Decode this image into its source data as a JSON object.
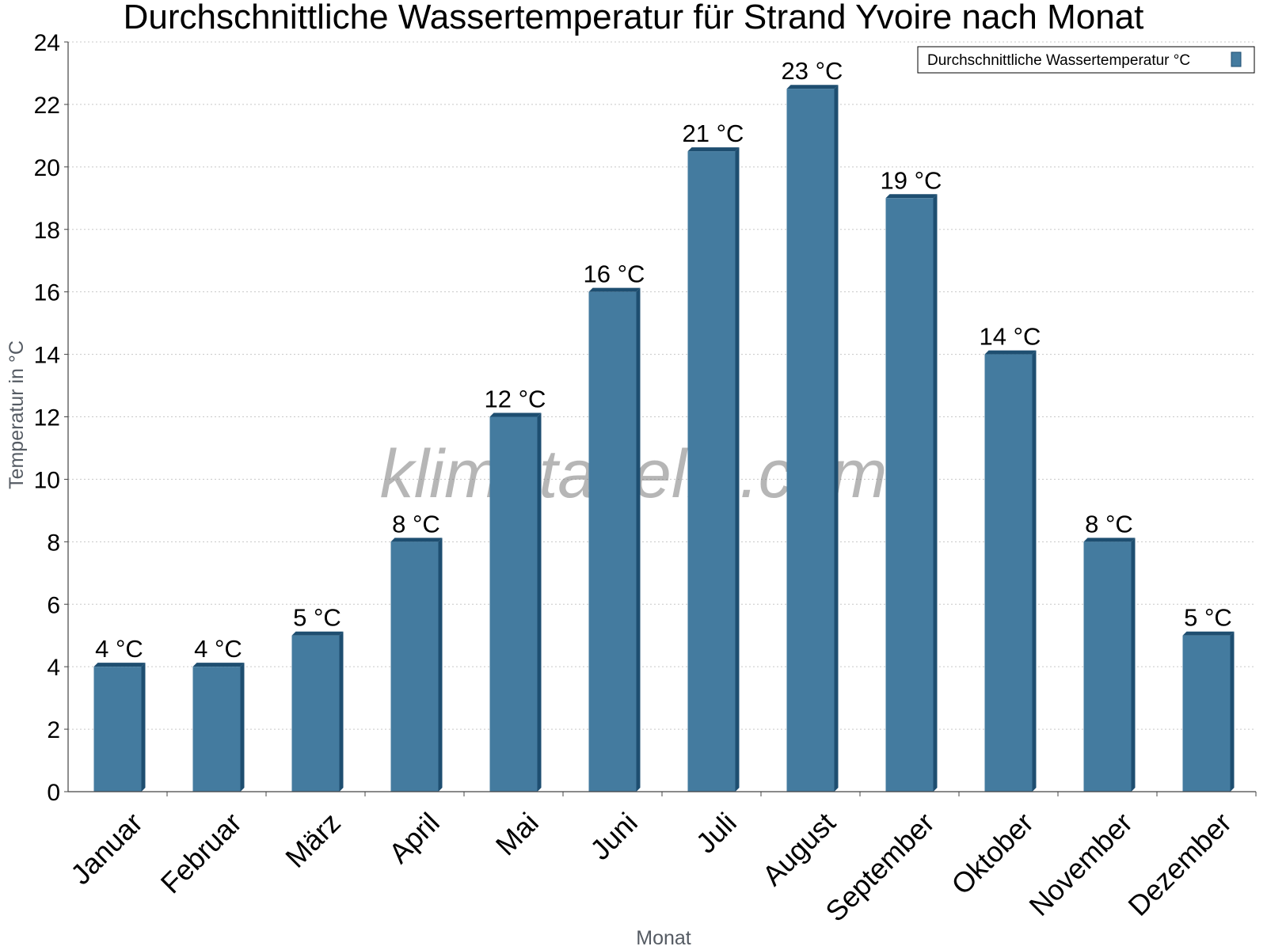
{
  "chart_data": {
    "type": "bar",
    "title": "Durchschnittliche Wassertemperatur für Strand Yvoire nach Monat",
    "xlabel": "Monat",
    "ylabel": "Temperatur in °C",
    "categories": [
      "Januar",
      "Februar",
      "März",
      "April",
      "Mai",
      "Juni",
      "Juli",
      "August",
      "September",
      "Oktober",
      "November",
      "Dezember"
    ],
    "series": [
      {
        "name": "Durchschnittliche Wassertemperatur °C",
        "values": [
          4,
          4,
          5,
          8,
          12,
          16,
          20.5,
          22.5,
          19,
          14,
          8,
          5
        ],
        "labels": [
          "4 °C",
          "4 °C",
          "5 °C",
          "8 °C",
          "12 °C",
          "16 °C",
          "21 °C",
          "23 °C",
          "19 °C",
          "14 °C",
          "8 °C",
          "5 °C"
        ]
      }
    ],
    "ylim": [
      0,
      24
    ],
    "yticks": [
      0,
      2,
      4,
      6,
      8,
      10,
      12,
      14,
      16,
      18,
      20,
      22,
      24
    ],
    "grid": true,
    "legend": "top-right",
    "colors": {
      "bar": "#447b9f",
      "bar_dark": "#1e4e70"
    }
  },
  "watermark": "klimatabelle.com"
}
